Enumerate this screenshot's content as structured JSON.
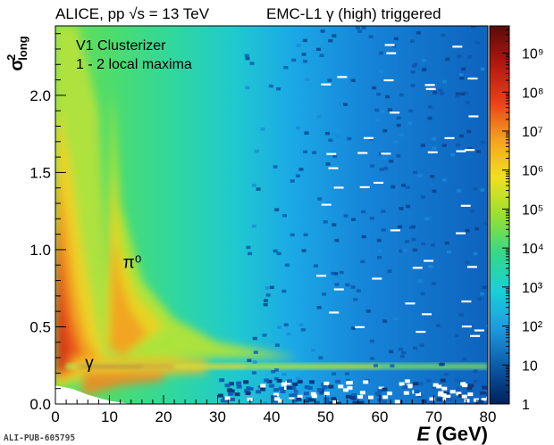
{
  "header": {
    "left": "ALICE, pp √s = 13 TeV",
    "right": "EMC-L1 γ (high) triggered"
  },
  "pub_id": "ALI-PUB-605795",
  "chart_data": {
    "type": "heatmap",
    "title": "",
    "xlabel": "E (GeV)",
    "ylabel": "σ²long",
    "xlim": [
      0,
      80
    ],
    "ylim": [
      0,
      2.45
    ],
    "x_ticks": [
      0,
      10,
      20,
      30,
      40,
      50,
      60,
      70,
      80
    ],
    "y_ticks": [
      0.0,
      0.5,
      1.0,
      1.5,
      2.0
    ],
    "z_scale": "log",
    "zlim": [
      1,
      5000000000
    ],
    "z_ticks": [
      1,
      10,
      100,
      1000,
      10000,
      100000,
      1000000,
      10000000,
      100000000,
      1000000000
    ],
    "z_tick_labels": [
      "1",
      "10",
      "10²",
      "10³",
      "10⁴",
      "10⁵",
      "10⁶",
      "10⁷",
      "10⁸",
      "10⁹"
    ],
    "grid": false,
    "colormap": [
      "#00205a",
      "#0b5aa8",
      "#1e9ae0",
      "#19d0d8",
      "#35d888",
      "#9ae030",
      "#f0e020",
      "#f5a020",
      "#e84018",
      "#b01810",
      "#5a0a08"
    ],
    "annotations": [
      {
        "text": "V1 Clusterizer",
        "position": "top-left"
      },
      {
        "text": "1 - 2 local maxima",
        "position": "top-left"
      },
      {
        "text": "π⁰",
        "x": 12.5,
        "y": 0.88
      },
      {
        "text": "γ",
        "x": 5.5,
        "y": 0.23
      }
    ],
    "bands": [
      {
        "name": "photon",
        "description": "horizontal ridge at sigma2long ~ 0.25 spanning the full energy range"
      },
      {
        "name": "pi0",
        "description": "merged-pi0 band starting near E ~ 10 GeV and decreasing with energy"
      }
    ]
  }
}
